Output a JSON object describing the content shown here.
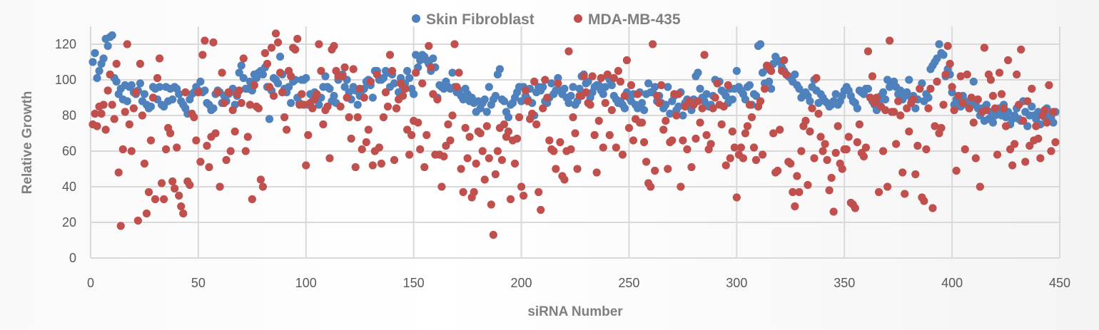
{
  "chart_data": {
    "type": "scatter",
    "title": "",
    "xlabel": "siRNA Number",
    "ylabel": "Relative Growth",
    "xlim": [
      0,
      450
    ],
    "ylim": [
      0,
      130
    ],
    "xticks": [
      0,
      50,
      100,
      150,
      200,
      250,
      300,
      350,
      400,
      450
    ],
    "yticks": [
      0,
      20,
      40,
      60,
      80,
      100,
      120
    ],
    "grid": true,
    "legend_position": "top",
    "series": [
      {
        "name": "Skin Fibroblast",
        "color": "#4f81bd",
        "values": [
          110,
          115,
          101,
          105,
          109,
          112,
          123,
          119,
          124,
          125,
          101,
          99,
          92,
          95,
          89,
          97,
          88,
          96,
          97,
          93,
          92,
          94,
          98,
          88,
          92,
          86,
          84,
          85,
          96,
          95,
          89,
          96,
          86,
          85,
          96,
          88,
          95,
          89,
          96,
          95,
          92,
          88,
          86,
          84,
          81,
          89,
          92,
          93,
          96,
          94,
          99,
          93,
          94,
          87,
          86,
          83,
          84,
          92,
          94,
          93,
          87,
          91,
          88,
          92,
          93,
          95,
          86,
          91,
          104,
          108,
          101,
          95,
          95,
          99,
          94,
          103,
          101,
          104,
          105,
          103,
          107,
          96,
          78,
          94,
          101,
          100,
          98,
          113,
          103,
          95,
          93,
          96,
          87,
          99,
          100,
          90,
          87,
          100,
          100,
          101,
          86,
          92,
          91,
          93,
          89,
          86,
          90,
          96,
          102,
          96,
          95,
          88,
          91,
          87,
          100,
          102,
          103,
          96,
          100,
          93,
          89,
          96,
          94,
          86,
          91,
          94,
          95,
          99,
          100,
          97,
          90,
          105,
          105,
          100,
          100,
          101,
          105,
          104,
          96,
          103,
          98,
          84,
          93,
          101,
          96,
          98,
          105,
          101,
          95,
          92,
          114,
          107,
          111,
          114,
          113,
          111,
          109,
          105,
          112,
          107,
          90,
          97,
          96,
          95,
          99,
          96,
          95,
          104,
          96,
          93,
          94,
          91,
          89,
          95,
          92,
          88,
          90,
          87,
          82,
          88,
          84,
          87,
          89,
          82,
          96,
          86,
          89,
          91,
          103,
          106,
          89,
          88,
          82,
          79,
          86,
          87,
          90,
          93,
          96,
          88,
          96,
          91,
          89,
          95,
          87,
          80,
          93,
          96,
          94,
          96,
          88,
          87,
          90,
          98,
          92,
          94,
          101,
          94,
          92,
          95,
          90,
          87,
          91,
          96,
          86,
          88,
          95,
          102,
          103,
          98,
          99,
          90,
          93,
          96,
          97,
          97,
          94,
          92,
          96,
          102,
          100,
          97,
          91,
          89,
          87,
          88,
          86,
          84,
          93,
          90,
          88,
          92,
          86,
          84,
          93,
          87,
          83,
          92,
          98,
          93,
          93,
          96,
          88,
          91,
          87,
          84,
          86,
          96,
          81,
          88,
          91,
          83,
          85,
          93,
          80,
          87,
          89,
          85,
          83,
          89,
          102,
          104,
          95,
          90,
          88,
          92,
          85,
          86,
          91,
          100,
          98,
          99,
          94,
          93,
          91,
          87,
          95,
          89,
          95,
          105,
          96,
          94,
          92,
          89,
          96,
          97,
          86,
          92,
          91,
          119,
          120,
          104,
          98,
          106,
          99,
          95,
          109,
          113,
          111,
          110,
          107,
          105,
          103,
          102,
          101,
          99,
          103,
          97,
          95,
          90,
          92,
          93,
          91,
          88,
          96,
          100,
          94,
          87,
          92,
          90,
          88,
          87,
          85,
          86,
          88,
          92,
          86,
          88,
          91,
          94,
          96,
          94,
          91,
          88,
          87,
          84,
          94,
          93,
          92,
          95,
          95,
          90,
          88,
          86,
          83,
          88,
          91,
          93,
          89,
          100,
          96,
          98,
          99,
          96,
          92,
          94,
          89,
          91,
          93,
          100,
          90,
          91,
          84,
          89,
          95,
          98,
          88,
          92,
          90,
          106,
          108,
          110,
          112,
          120,
          115,
          114,
          102,
          106,
          103,
          93,
          86,
          89,
          87,
          85,
          91,
          88,
          86,
          84,
          87,
          99,
          86,
          84,
          80,
          84,
          77,
          86,
          78,
          82,
          76,
          80,
          82,
          84,
          80,
          86,
          79,
          82,
          75,
          78,
          80,
          84,
          78,
          77,
          88,
          82,
          74,
          80,
          85,
          80,
          78,
          82,
          75,
          81,
          79,
          84,
          80,
          79,
          76,
          82
        ]
      },
      {
        "name": "MDA-MB-435",
        "color": "#c0504d",
        "values": [
          75,
          81,
          74,
          85,
          81,
          86,
          72,
          94,
          103,
          86,
          78,
          109,
          48,
          18,
          61,
          82,
          120,
          75,
          60,
          84,
          93,
          21,
          109,
          80,
          53,
          25,
          37,
          66,
          90,
          33,
          101,
          112,
          42,
          33,
          61,
          73,
          70,
          43,
          39,
          62,
          35,
          29,
          25,
          93,
          43,
          41,
          81,
          79,
          66,
          93,
          54,
          114,
          122,
          63,
          51,
          68,
          121,
          70,
          93,
          40,
          104,
          87,
          55,
          93,
          60,
          83,
          71,
          92,
          94,
          87,
          112,
          60,
          68,
          86,
          33,
          97,
          85,
          84,
          44,
          40,
          115,
          109,
          96,
          118,
          91,
          126,
          121,
          104,
          93,
          79,
          72,
          105,
          102,
          118,
          117,
          123,
          86,
          92,
          86,
          52,
          69,
          87,
          84,
          89,
          92,
          120,
          105,
          75,
          83,
          85,
          56,
          117,
          119,
          105,
          102,
          85,
          102,
          107,
          90,
          79,
          67,
          106,
          51,
          79,
          95,
          61,
          90,
          65,
          72,
          99,
          52,
          60,
          103,
          62,
          53,
          79,
          93,
          85,
          114,
          105,
          55,
          84,
          89,
          98,
          91,
          95,
          72,
          58,
          69,
          77,
          104,
          76,
          61,
          98,
          51,
          69,
          119,
          107,
          92,
          58,
          89,
          58,
          40,
          57,
          63,
          75,
          66,
          80,
          120,
          96,
          104,
          50,
          37,
          73,
          56,
          68,
          34,
          37,
          53,
          71,
          70,
          60,
          44,
          74,
          56,
          30,
          13,
          47,
          60,
          73,
          55,
          75,
          68,
          71,
          33,
          66,
          53,
          67,
          79,
          40,
          35,
          94,
          88,
          78,
          81,
          99,
          75,
          37,
          27,
          84,
          100,
          90,
          66,
          61,
          60,
          50,
          98,
          65,
          46,
          44,
          60,
          116,
          61,
          79,
          70,
          50,
          91,
          91,
          102,
          93,
          87,
          86,
          102,
          69,
          48,
          77,
          101,
          62,
          87,
          103,
          69,
          83,
          101,
          62,
          105,
          99,
          58,
          91,
          111,
          73,
          97,
          66,
          78,
          92,
          76,
          76,
          65,
          54,
          42,
          40,
          120,
          49,
          91,
          87,
          97,
          72,
          77,
          50,
          65,
          66,
          92,
          80,
          92,
          40,
          66,
          85,
          61,
          88,
          51,
          86,
          67,
          88,
          76,
          84,
          114,
          69,
          61,
          64,
          84,
          90,
          98,
          86,
          75,
          85,
          52,
          97,
          56,
          71,
          62,
          34,
          58,
          62,
          56,
          70,
          74,
          86,
          79,
          62,
          55,
          85,
          88,
          58,
          95,
          108,
          107,
          105,
          70,
          48,
          49,
          72,
          105,
          111,
          103,
          54,
          53,
          37,
          29,
          46,
          37,
          60,
          74,
          77,
          41,
          71,
          84,
          56,
          101,
          81,
          68,
          60,
          64,
          55,
          38,
          45,
          26,
          59,
          74,
          53,
          50,
          61,
          61,
          68,
          31,
          30,
          28,
          65,
          75,
          59,
          57,
          62,
          116,
          90,
          102,
          87,
          90,
          37,
          85,
          60,
          83,
          40,
          122,
          82,
          82,
          64,
          88,
          80,
          48,
          36,
          84,
          71,
          87,
          89,
          47,
          63,
          95,
          34,
          32,
          61,
          84,
          95,
          28,
          74,
          99,
          70,
          73,
          86,
          103,
          119,
          109,
          96,
          83,
          49,
          91,
          102,
          87,
          61,
          103,
          84,
          90,
          76,
          56,
          89,
          40,
          82,
          118,
          83,
          103,
          100,
          91,
          84,
          58,
          104,
          92,
          84,
          74,
          111,
          61,
          52,
          64,
          103,
          86,
          117,
          77,
          54,
          88,
          63,
          95,
          66,
          74,
          67,
          56,
          80,
          83,
          76,
          97,
          60,
          82,
          65
        ]
      }
    ]
  }
}
